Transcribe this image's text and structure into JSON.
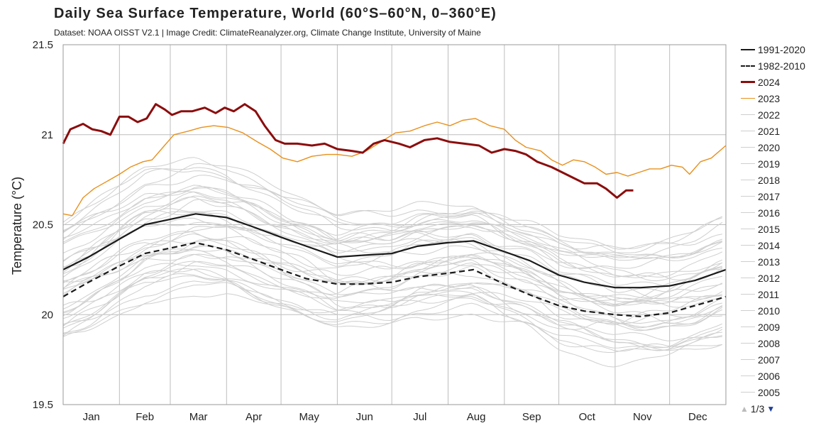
{
  "chart_data": {
    "type": "line",
    "title": "Daily Sea Surface Temperature, World (60°S–60°N, 0–360°E)",
    "subtitle": "Dataset: NOAA OISST V2.1 | Image Credit: ClimateReanalyzer.org, Climate Change Institute, University of Maine",
    "ylabel": "Temperature (°C)",
    "xlabel": "",
    "ylim": [
      19.5,
      21.5
    ],
    "yticks": [
      "21.5",
      "21",
      "20.5",
      "20",
      "19.5"
    ],
    "ytick_values": [
      21.5,
      21.0,
      20.5,
      20.0,
      19.5
    ],
    "x_unit": "day of year",
    "xlim": [
      1,
      366
    ],
    "months": [
      "Jan",
      "Feb",
      "Mar",
      "Apr",
      "May",
      "Jun",
      "Jul",
      "Aug",
      "Sep",
      "Oct",
      "Nov",
      "Dec"
    ],
    "grid": true,
    "legend_position": "right",
    "series": [
      {
        "name": "1991-2020",
        "color": "#1a1a1a",
        "style": "solid",
        "x": [
          1,
          15,
          32,
          46,
          60,
          74,
          91,
          105,
          121,
          135,
          152,
          166,
          182,
          196,
          213,
          227,
          244,
          258,
          274,
          288,
          305,
          319,
          335,
          349,
          366
        ],
        "y": [
          20.25,
          20.32,
          20.42,
          20.5,
          20.53,
          20.56,
          20.54,
          20.49,
          20.43,
          20.38,
          20.32,
          20.33,
          20.34,
          20.38,
          20.4,
          20.41,
          20.35,
          20.3,
          20.22,
          20.18,
          20.15,
          20.15,
          20.16,
          20.19,
          20.25
        ]
      },
      {
        "name": "1982-2010",
        "color": "#1a1a1a",
        "style": "dashed",
        "x": [
          1,
          15,
          32,
          46,
          60,
          74,
          91,
          105,
          121,
          135,
          152,
          166,
          182,
          196,
          213,
          227,
          244,
          258,
          274,
          288,
          305,
          319,
          335,
          349,
          366
        ],
        "y": [
          20.1,
          20.18,
          20.27,
          20.34,
          20.37,
          20.4,
          20.36,
          20.31,
          20.25,
          20.2,
          20.17,
          20.17,
          20.18,
          20.21,
          20.23,
          20.25,
          20.17,
          20.11,
          20.05,
          20.02,
          20.0,
          19.99,
          20.01,
          20.05,
          20.1
        ]
      },
      {
        "name": "2024",
        "color": "#8b0d0d",
        "style": "solid",
        "x": [
          1,
          5,
          12,
          17,
          22,
          27,
          32,
          37,
          42,
          47,
          52,
          57,
          61,
          66,
          72,
          79,
          85,
          90,
          95,
          101,
          107,
          112,
          118,
          123,
          130,
          138,
          145,
          152,
          160,
          166,
          172,
          178,
          186,
          192,
          200,
          207,
          214,
          222,
          230,
          237,
          244,
          250,
          256,
          262,
          270,
          276,
          282,
          288,
          295,
          300,
          306,
          311,
          315
        ],
        "y": [
          20.95,
          21.03,
          21.06,
          21.03,
          21.02,
          21.0,
          21.1,
          21.1,
          21.07,
          21.09,
          21.17,
          21.14,
          21.11,
          21.13,
          21.13,
          21.15,
          21.12,
          21.15,
          21.13,
          21.17,
          21.13,
          21.05,
          20.97,
          20.95,
          20.95,
          20.94,
          20.95,
          20.92,
          20.91,
          20.9,
          20.95,
          20.97,
          20.95,
          20.93,
          20.97,
          20.98,
          20.96,
          20.95,
          20.94,
          20.9,
          20.92,
          20.91,
          20.89,
          20.85,
          20.82,
          20.79,
          20.76,
          20.73,
          20.73,
          20.7,
          20.65,
          20.69,
          20.69
        ]
      },
      {
        "name": "2023",
        "color": "#e8901c",
        "style": "solid",
        "x": [
          1,
          6,
          12,
          18,
          25,
          32,
          38,
          45,
          50,
          56,
          62,
          70,
          77,
          84,
          92,
          100,
          108,
          115,
          122,
          130,
          138,
          146,
          152,
          160,
          168,
          176,
          184,
          192,
          200,
          207,
          214,
          221,
          228,
          236,
          244,
          250,
          256,
          264,
          270,
          276,
          282,
          288,
          294,
          300,
          306,
          312,
          318,
          324,
          330,
          336,
          342,
          346,
          352,
          358,
          366
        ],
        "y": [
          20.56,
          20.55,
          20.65,
          20.7,
          20.74,
          20.78,
          20.82,
          20.85,
          20.86,
          20.93,
          21.0,
          21.02,
          21.04,
          21.05,
          21.04,
          21.01,
          20.96,
          20.92,
          20.87,
          20.85,
          20.88,
          20.89,
          20.89,
          20.88,
          20.91,
          20.96,
          21.01,
          21.02,
          21.05,
          21.07,
          21.05,
          21.08,
          21.09,
          21.05,
          21.03,
          20.97,
          20.93,
          20.91,
          20.86,
          20.83,
          20.86,
          20.85,
          20.82,
          20.78,
          20.79,
          20.77,
          20.79,
          20.81,
          20.81,
          20.83,
          20.82,
          20.78,
          20.85,
          20.87,
          20.94
        ]
      },
      {
        "name": "2022",
        "color": "#cfcfcf",
        "style": "solid",
        "x": [],
        "y": []
      },
      {
        "name": "2021",
        "color": "#cfcfcf",
        "style": "solid",
        "x": [],
        "y": []
      },
      {
        "name": "2020",
        "color": "#cfcfcf",
        "style": "solid",
        "x": [],
        "y": []
      },
      {
        "name": "2019",
        "color": "#cfcfcf",
        "style": "solid",
        "x": [],
        "y": []
      },
      {
        "name": "2018",
        "color": "#cfcfcf",
        "style": "solid",
        "x": [],
        "y": []
      },
      {
        "name": "2017",
        "color": "#cfcfcf",
        "style": "solid",
        "x": [],
        "y": []
      },
      {
        "name": "2016",
        "color": "#cfcfcf",
        "style": "solid",
        "x": [],
        "y": []
      },
      {
        "name": "2015",
        "color": "#cfcfcf",
        "style": "solid",
        "x": [],
        "y": []
      },
      {
        "name": "2014",
        "color": "#cfcfcf",
        "style": "solid",
        "x": [],
        "y": []
      },
      {
        "name": "2013",
        "color": "#cfcfcf",
        "style": "solid",
        "x": [],
        "y": []
      },
      {
        "name": "2012",
        "color": "#cfcfcf",
        "style": "solid",
        "x": [],
        "y": []
      },
      {
        "name": "2011",
        "color": "#cfcfcf",
        "style": "solid",
        "x": [],
        "y": []
      },
      {
        "name": "2010",
        "color": "#cfcfcf",
        "style": "solid",
        "x": [],
        "y": []
      },
      {
        "name": "2009",
        "color": "#cfcfcf",
        "style": "solid",
        "x": [],
        "y": []
      },
      {
        "name": "2008",
        "color": "#cfcfcf",
        "style": "solid",
        "x": [],
        "y": []
      },
      {
        "name": "2007",
        "color": "#cfcfcf",
        "style": "solid",
        "x": [],
        "y": []
      },
      {
        "name": "2006",
        "color": "#cfcfcf",
        "style": "solid",
        "x": [],
        "y": []
      },
      {
        "name": "2005",
        "color": "#cfcfcf",
        "style": "solid",
        "x": [],
        "y": []
      }
    ],
    "background_years_color": "#cfcfcf"
  },
  "legend": {
    "page": "1/3",
    "up_icon": "triangle-up-icon",
    "down_icon": "triangle-down-icon"
  }
}
